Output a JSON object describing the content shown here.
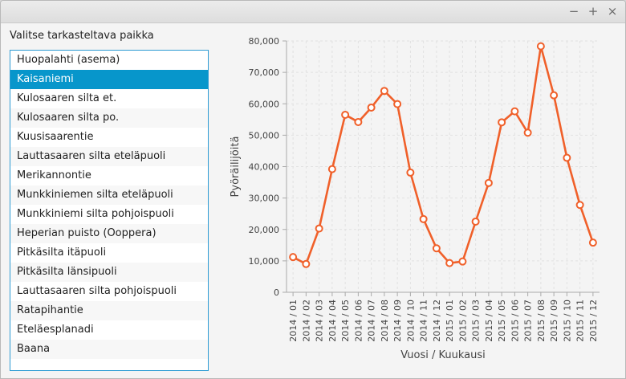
{
  "window": {
    "controls": {
      "minimize": "−",
      "maximize": "+",
      "close": "×"
    }
  },
  "sidebar": {
    "prompt": "Valitse tarkasteltava paikka",
    "selected_index": 1,
    "items": [
      "Huopalahti (asema)",
      "Kaisaniemi",
      "Kulosaaren silta et.",
      "Kulosaaren silta po.",
      "Kuusisaarentie",
      "Lauttasaaren silta eteläpuoli",
      "Merikannontie",
      "Munkkiniemen silta eteläpuoli",
      "Munkkiniemi silta pohjoispuoli",
      "Heperian puisto (Ooppera)",
      "Pitkäsilta itäpuoli",
      "Pitkäsilta länsipuoli",
      "Lauttasaaren silta pohjoispuoli",
      "Ratapihantie",
      "Eteläesplanadi",
      "Baana"
    ]
  },
  "chart_data": {
    "type": "line",
    "xlabel": "Vuosi / Kuukausi",
    "ylabel": "Pyöräilijöitä",
    "ylim": [
      0,
      80000
    ],
    "yticks": [
      "0",
      "10,000",
      "20,000",
      "30,000",
      "40,000",
      "50,000",
      "60,000",
      "70,000",
      "80,000"
    ],
    "grid": true,
    "line_color": "#f0602a",
    "categories": [
      "2014 / 01",
      "2014 / 02",
      "2014 / 03",
      "2014 / 04",
      "2014 / 05",
      "2014 / 06",
      "2014 / 07",
      "2014 / 08",
      "2014 / 09",
      "2014 / 10",
      "2014 / 11",
      "2014 / 12",
      "2015 / 01",
      "2015 / 02",
      "2015 / 03",
      "2015 / 04",
      "2015 / 05",
      "2015 / 06",
      "2015 / 07",
      "2015 / 08",
      "2015 / 09",
      "2015 / 10",
      "2015 / 11",
      "2015 / 12"
    ],
    "values": [
      11200,
      9000,
      20300,
      39200,
      56500,
      54200,
      58800,
      64100,
      59900,
      38100,
      23300,
      14000,
      9300,
      9800,
      22500,
      34800,
      54100,
      57600,
      50800,
      78300,
      62700,
      42800,
      27800,
      15800
    ]
  }
}
